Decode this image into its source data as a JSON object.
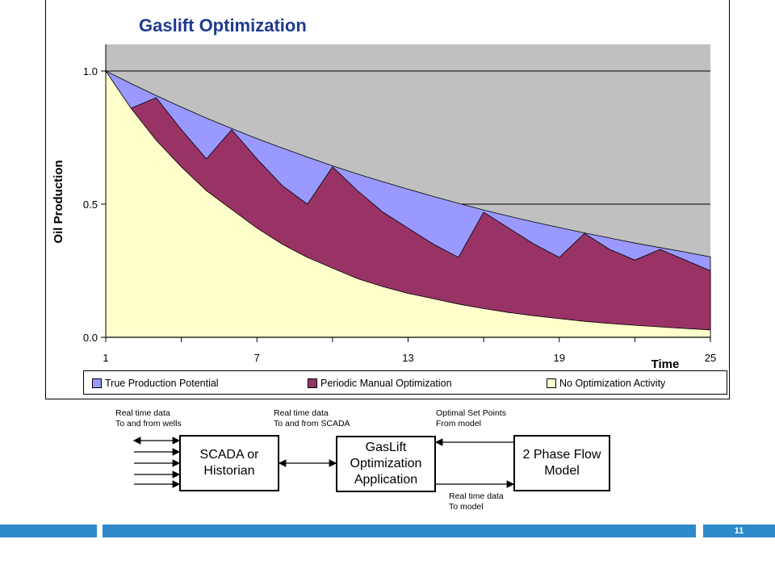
{
  "chart_data": {
    "type": "area",
    "title": "Gaslift Optimization",
    "ylabel": "Oil Production",
    "xlabel": "Time",
    "ylim": [
      0,
      1
    ],
    "xlim": [
      1,
      25
    ],
    "y_ticks": [
      "0.0",
      "0.5",
      "1.0"
    ],
    "x_ticks": [
      "1",
      "7",
      "13",
      "19",
      "25"
    ],
    "x": [
      1,
      2,
      3,
      4,
      5,
      6,
      7,
      8,
      9,
      10,
      11,
      12,
      13,
      14,
      15,
      16,
      17,
      18,
      19,
      20,
      21,
      22,
      23,
      24,
      25
    ],
    "series": [
      {
        "name": "True Production Potential",
        "color": "#9999ff",
        "values": [
          1.0,
          0.953,
          0.908,
          0.865,
          0.823,
          0.784,
          0.746,
          0.711,
          0.677,
          0.644,
          0.613,
          0.584,
          0.556,
          0.529,
          0.503,
          0.478,
          0.455,
          0.433,
          0.412,
          0.392,
          0.373,
          0.354,
          0.337,
          0.32,
          0.302
        ]
      },
      {
        "name": "Periodic Manual Optimization",
        "color": "#993366",
        "values": [
          1.0,
          0.86,
          0.9,
          0.78,
          0.67,
          0.78,
          0.67,
          0.57,
          0.5,
          0.64,
          0.55,
          0.47,
          0.41,
          0.35,
          0.3,
          0.47,
          0.41,
          0.35,
          0.3,
          0.39,
          0.33,
          0.29,
          0.33,
          0.29,
          0.25
        ]
      },
      {
        "name": "No Optimization Activity",
        "color": "#ffffcc",
        "values": [
          1.0,
          0.86,
          0.74,
          0.64,
          0.55,
          0.48,
          0.41,
          0.35,
          0.3,
          0.26,
          0.22,
          0.19,
          0.165,
          0.145,
          0.125,
          0.108,
          0.093,
          0.081,
          0.07,
          0.06,
          0.052,
          0.045,
          0.039,
          0.033,
          0.028
        ]
      }
    ],
    "plot_background": "#c0c0c0",
    "legend_position": "bottom",
    "grid": true
  },
  "diagram": {
    "boxes": {
      "scada": "SCADA or\nHistorian",
      "gaslift": "GasLift\nOptimization\nApplication",
      "flow": "2 Phase Flow\nModel"
    },
    "notes": {
      "wells": "Real time data\nTo and from wells",
      "scada_link": "Real time data\nTo and from SCADA",
      "set_points": "Optimal Set Points\nFrom model",
      "to_model": "Real time data\nTo model"
    }
  },
  "footer": {
    "page_number": "11",
    "accent": "#2e8ac9"
  }
}
